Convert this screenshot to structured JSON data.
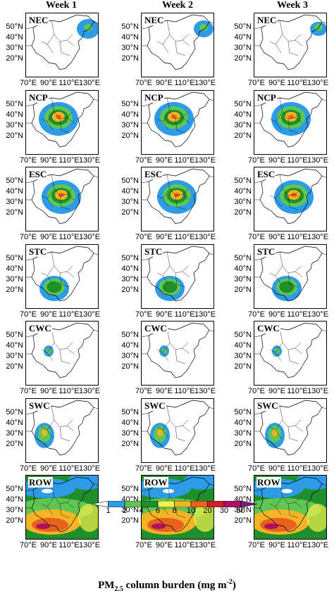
{
  "columns": [
    "Week 1",
    "Week 2",
    "Week 3"
  ],
  "rows": [
    "NEC",
    "NCP",
    "ESC",
    "STC",
    "CWC",
    "SWC",
    "ROW"
  ],
  "lat_labels": [
    "50°N",
    "40°N",
    "30°N",
    "20°N"
  ],
  "lon_labels": [
    "70°E",
    "90°E",
    "110°E",
    "130°E"
  ],
  "colorbar": {
    "levels": [
      "1",
      "2",
      "4",
      "6",
      "8",
      "10",
      "20",
      "30",
      "50"
    ],
    "colors": [
      "#ffffff",
      "#2e9be6",
      "#5fc654",
      "#1f8f2c",
      "#f7f04a",
      "#f5b425",
      "#e8621e",
      "#d11f2a",
      "#b01060",
      "#7a1a7a"
    ],
    "title_main": "PM",
    "title_sub": "2.5",
    "title_rest": " column burden (mg m",
    "title_sup": "-2",
    "title_end": ")"
  }
}
